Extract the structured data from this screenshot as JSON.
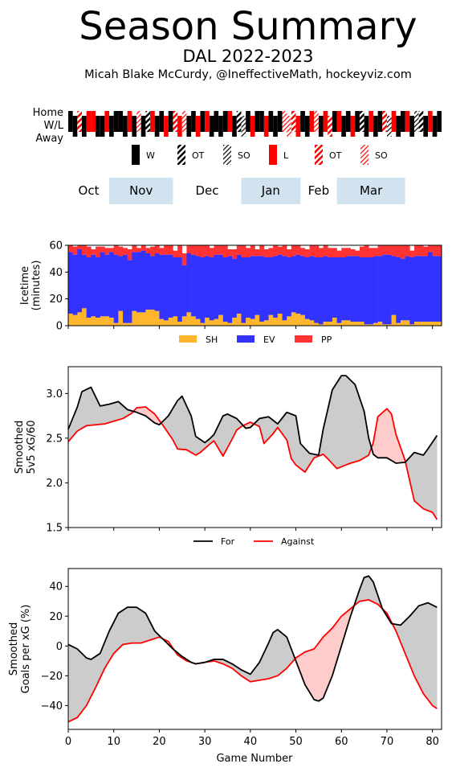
{
  "header": {
    "title": "Season Summary",
    "team_season": "DAL 2022-2023",
    "credit": "Micah Blake McCurdy, @IneffectiveMath, hockeyviz.com"
  },
  "colors": {
    "win": "#000000",
    "loss": "#ff0000",
    "sh": "#ffb52e",
    "ev": "#3333ff",
    "pp": "#ff3333",
    "for_line": "#000000",
    "against_line": "#ff0000",
    "gap_for": "#cccccc",
    "gap_against": "#ffcccc",
    "month_band": "#d1e3ef"
  },
  "results_strip": {
    "row_labels": [
      "Home",
      "W/L",
      "Away"
    ],
    "legend": [
      {
        "label": "W",
        "color": "#000000",
        "style": "solid"
      },
      {
        "label": "OT",
        "color": "#000000",
        "style": "hatch"
      },
      {
        "label": "SO",
        "color": "#000000",
        "style": "hatch-light"
      },
      {
        "label": "L",
        "color": "#ff0000",
        "style": "solid"
      },
      {
        "label": "OT",
        "color": "#ff0000",
        "style": "hatch"
      },
      {
        "label": "SO",
        "color": "#ff0000",
        "style": "hatch-light"
      }
    ],
    "games": [
      {
        "home": true,
        "result": "W"
      },
      {
        "home": false,
        "result": "W"
      },
      {
        "home": true,
        "result": "OTL"
      },
      {
        "home": false,
        "result": "W"
      },
      {
        "home": true,
        "result": "L"
      },
      {
        "home": true,
        "result": "L"
      },
      {
        "home": false,
        "result": "W"
      },
      {
        "home": false,
        "result": "W"
      },
      {
        "home": true,
        "result": "L"
      },
      {
        "home": false,
        "result": "W"
      },
      {
        "home": true,
        "result": "W"
      },
      {
        "home": true,
        "result": "W"
      },
      {
        "home": false,
        "result": "W"
      },
      {
        "home": true,
        "result": "L"
      },
      {
        "home": false,
        "result": "W"
      },
      {
        "home": true,
        "result": "SOL"
      },
      {
        "home": false,
        "result": "W"
      },
      {
        "home": true,
        "result": "OTW"
      },
      {
        "home": true,
        "result": "L"
      },
      {
        "home": false,
        "result": "W"
      },
      {
        "home": true,
        "result": "W"
      },
      {
        "home": false,
        "result": "L"
      },
      {
        "home": true,
        "result": "W"
      },
      {
        "home": true,
        "result": "OTL"
      },
      {
        "home": false,
        "result": "L"
      },
      {
        "home": true,
        "result": "SOL"
      },
      {
        "home": false,
        "result": "W"
      },
      {
        "home": true,
        "result": "W"
      },
      {
        "home": false,
        "result": "L"
      },
      {
        "home": true,
        "result": "W"
      },
      {
        "home": true,
        "result": "L"
      },
      {
        "home": false,
        "result": "W"
      },
      {
        "home": true,
        "result": "W"
      },
      {
        "home": false,
        "result": "W"
      },
      {
        "home": true,
        "result": "W"
      },
      {
        "home": true,
        "result": "L"
      },
      {
        "home": false,
        "result": "W"
      },
      {
        "home": true,
        "result": "OTW"
      },
      {
        "home": false,
        "result": "SOW"
      },
      {
        "home": true,
        "result": "W"
      },
      {
        "home": false,
        "result": "L"
      },
      {
        "home": true,
        "result": "W"
      },
      {
        "home": true,
        "result": "W"
      },
      {
        "home": false,
        "result": "L"
      },
      {
        "home": true,
        "result": "W"
      },
      {
        "home": false,
        "result": "W"
      },
      {
        "home": true,
        "result": "W"
      },
      {
        "home": true,
        "result": "SOL"
      },
      {
        "home": false,
        "result": "SOL"
      },
      {
        "home": true,
        "result": "OTL"
      },
      {
        "home": false,
        "result": "L"
      },
      {
        "home": true,
        "result": "W"
      },
      {
        "home": false,
        "result": "W"
      },
      {
        "home": true,
        "result": "L"
      },
      {
        "home": true,
        "result": "SOL"
      },
      {
        "home": false,
        "result": "W"
      },
      {
        "home": true,
        "result": "L"
      },
      {
        "home": false,
        "result": "OTL"
      },
      {
        "home": true,
        "result": "W"
      },
      {
        "home": true,
        "result": "L"
      },
      {
        "home": false,
        "result": "W"
      },
      {
        "home": true,
        "result": "W"
      },
      {
        "home": false,
        "result": "L"
      },
      {
        "home": true,
        "result": "W"
      },
      {
        "home": true,
        "result": "OTW"
      },
      {
        "home": false,
        "result": "W"
      },
      {
        "home": true,
        "result": "L"
      },
      {
        "home": false,
        "result": "W"
      },
      {
        "home": true,
        "result": "W"
      },
      {
        "home": true,
        "result": "OTL"
      },
      {
        "home": false,
        "result": "SOW"
      },
      {
        "home": true,
        "result": "L"
      },
      {
        "home": false,
        "result": "W"
      },
      {
        "home": true,
        "result": "W"
      },
      {
        "home": true,
        "result": "L"
      },
      {
        "home": false,
        "result": "W"
      },
      {
        "home": true,
        "result": "SOW"
      },
      {
        "home": true,
        "result": "OTW"
      },
      {
        "home": false,
        "result": "W"
      },
      {
        "home": true,
        "result": "L"
      },
      {
        "home": false,
        "result": "W"
      },
      {
        "home": true,
        "result": "W"
      }
    ]
  },
  "months": [
    {
      "label": "Oct",
      "start": -0.5,
      "end": 8.5,
      "shaded": false
    },
    {
      "label": "Nov",
      "start": 8.5,
      "end": 22.5,
      "shaded": true
    },
    {
      "label": "Dec",
      "start": 22.5,
      "end": 37.5,
      "shaded": false
    },
    {
      "label": "Jan",
      "start": 37.5,
      "end": 50.5,
      "shaded": true
    },
    {
      "label": "Feb",
      "start": 50.5,
      "end": 58.5,
      "shaded": false
    },
    {
      "label": "Mar",
      "start": 58.5,
      "end": 73.5,
      "shaded": true
    }
  ],
  "chart_data": [
    {
      "type": "bar",
      "stacked": true,
      "ylabel": "Icetime\n(minutes)",
      "ylim": [
        0,
        60
      ],
      "yticks": [
        0,
        20,
        40,
        60
      ],
      "xlim": [
        0,
        82
      ],
      "legend_position": "below",
      "series": [
        {
          "name": "SH",
          "values": [
            9,
            8,
            10,
            13,
            6,
            7,
            6,
            7,
            7,
            6,
            2,
            11,
            2,
            2,
            11,
            10,
            10,
            12,
            12,
            11,
            5,
            4,
            6,
            7,
            3,
            7,
            10,
            7,
            5,
            2,
            6,
            4,
            5,
            8,
            3,
            2,
            6,
            9,
            2,
            6,
            5,
            8,
            3,
            4,
            8,
            6,
            9,
            4,
            7,
            10,
            9,
            8,
            5,
            4,
            2,
            1,
            3,
            3,
            6,
            2,
            4,
            4,
            3,
            3,
            3,
            1,
            1,
            2,
            3,
            1,
            1,
            8,
            2,
            4,
            4,
            1,
            3,
            3,
            3,
            3,
            3,
            3
          ]
        },
        {
          "name": "EV",
          "values": [
            46,
            45,
            47,
            40,
            45,
            46,
            45,
            48,
            46,
            49,
            51,
            41,
            51,
            47,
            44,
            45,
            46,
            42,
            40,
            43,
            48,
            49,
            47,
            44,
            48,
            38,
            44,
            46,
            47,
            49,
            46,
            47,
            48,
            45,
            48,
            50,
            44,
            44,
            49,
            45,
            47,
            44,
            49,
            47,
            43,
            46,
            44,
            48,
            44,
            42,
            44,
            44,
            46,
            48,
            49,
            50,
            49,
            48,
            45,
            49,
            47,
            48,
            49,
            49,
            48,
            50,
            50,
            50,
            49,
            52,
            52,
            44,
            49,
            46,
            48,
            50,
            49,
            49,
            49,
            52,
            49,
            49
          ]
        },
        {
          "name": "PP",
          "values": [
            5,
            6,
            3,
            7,
            8,
            4,
            8,
            4,
            5,
            3,
            7,
            7,
            5,
            8,
            5,
            3,
            4,
            4,
            7,
            6,
            5,
            7,
            7,
            5,
            9,
            9,
            6,
            7,
            8,
            9,
            8,
            7,
            7,
            7,
            9,
            5,
            7,
            7,
            9,
            7,
            8,
            5,
            8,
            6,
            7,
            8,
            6,
            8,
            6,
            8,
            7,
            6,
            6,
            8,
            9,
            7,
            8,
            7,
            7,
            5,
            7,
            6,
            5,
            4,
            8,
            9,
            7,
            6,
            8,
            7,
            7,
            8,
            9,
            10,
            8,
            5,
            8,
            8,
            7,
            5,
            8,
            8
          ]
        }
      ]
    },
    {
      "type": "line",
      "ylabel": "Smoothed\n5v5 xG/60",
      "ylim": [
        1.5,
        3.3
      ],
      "yticks": [
        1.5,
        2.0,
        2.5,
        3.0
      ],
      "xlim": [
        0,
        82
      ],
      "legend_position": "below",
      "fill_between": true,
      "series": [
        {
          "name": "For",
          "x": [
            0,
            2,
            3,
            5,
            7,
            9,
            11,
            13,
            15,
            17,
            19,
            20,
            22,
            24,
            25,
            27,
            28,
            30,
            31,
            32,
            34,
            35,
            37,
            39,
            40,
            42,
            44,
            46,
            48,
            50,
            51,
            53,
            55,
            56,
            58,
            60,
            61,
            63,
            65,
            66,
            67,
            68,
            70,
            72,
            74,
            76,
            78,
            79,
            81
          ],
          "y": [
            2.6,
            2.85,
            3.02,
            3.07,
            2.86,
            2.88,
            2.91,
            2.82,
            2.79,
            2.75,
            2.67,
            2.65,
            2.75,
            2.92,
            2.97,
            2.75,
            2.52,
            2.45,
            2.49,
            2.54,
            2.75,
            2.77,
            2.72,
            2.61,
            2.62,
            2.72,
            2.74,
            2.66,
            2.79,
            2.75,
            2.44,
            2.33,
            2.31,
            2.6,
            3.04,
            3.2,
            3.2,
            3.1,
            2.8,
            2.5,
            2.32,
            2.28,
            2.28,
            2.22,
            2.23,
            2.34,
            2.31,
            2.38,
            2.53
          ]
        },
        {
          "name": "Against",
          "x": [
            0,
            2,
            4,
            6,
            8,
            10,
            12,
            14,
            15,
            17,
            19,
            21,
            23,
            24,
            26,
            28,
            29,
            31,
            32,
            34,
            36,
            37,
            38,
            40,
            42,
            43,
            45,
            46,
            48,
            49,
            50,
            52,
            54,
            56,
            57,
            59,
            61,
            62,
            64,
            66,
            67,
            68,
            70,
            71,
            72,
            74,
            76,
            78,
            80,
            81
          ],
          "y": [
            2.46,
            2.58,
            2.64,
            2.65,
            2.66,
            2.69,
            2.72,
            2.78,
            2.84,
            2.85,
            2.77,
            2.63,
            2.48,
            2.38,
            2.37,
            2.31,
            2.34,
            2.43,
            2.47,
            2.3,
            2.49,
            2.59,
            2.63,
            2.68,
            2.63,
            2.44,
            2.55,
            2.62,
            2.48,
            2.27,
            2.2,
            2.12,
            2.28,
            2.32,
            2.27,
            2.16,
            2.2,
            2.22,
            2.25,
            2.31,
            2.45,
            2.74,
            2.83,
            2.77,
            2.54,
            2.25,
            1.8,
            1.71,
            1.67,
            1.59
          ]
        }
      ]
    },
    {
      "type": "line",
      "ylabel": "Smoothed\nGoals per xG (%)",
      "xlabel": "Game Number",
      "ylim": [
        -56,
        52
      ],
      "yticks": [
        -40,
        -20,
        0,
        20,
        40
      ],
      "xlim": [
        0,
        82
      ],
      "xticks": [
        0,
        10,
        20,
        30,
        40,
        50,
        60,
        70,
        80
      ],
      "fill_between": true,
      "series": [
        {
          "name": "For",
          "x": [
            0,
            2,
            4,
            5,
            7,
            9,
            11,
            13,
            15,
            17,
            19,
            21,
            23,
            25,
            27,
            28,
            30,
            32,
            34,
            36,
            38,
            40,
            42,
            44,
            45,
            46,
            48,
            50,
            52,
            54,
            55,
            56,
            58,
            60,
            62,
            64,
            65,
            66,
            67,
            69,
            71,
            73,
            75,
            77,
            79,
            81
          ],
          "y": [
            1,
            -2,
            -8,
            -9,
            -5,
            10,
            22,
            26,
            26,
            22,
            10,
            4,
            -2,
            -7,
            -11,
            -12,
            -11,
            -9,
            -9,
            -12,
            -16,
            -19,
            -11,
            2,
            9,
            11,
            6,
            -10,
            -26,
            -36,
            -37,
            -35,
            -20,
            0,
            20,
            38,
            46,
            47,
            43,
            25,
            15,
            14,
            20,
            27,
            29,
            26
          ]
        },
        {
          "name": "Against",
          "x": [
            0,
            2,
            4,
            6,
            8,
            10,
            12,
            14,
            16,
            18,
            20,
            22,
            24,
            26,
            28,
            30,
            32,
            34,
            36,
            38,
            40,
            42,
            44,
            46,
            48,
            50,
            52,
            54,
            56,
            58,
            60,
            62,
            64,
            66,
            68,
            70,
            72,
            74,
            76,
            78,
            80,
            81
          ],
          "y": [
            -51,
            -48,
            -40,
            -28,
            -15,
            -5,
            1,
            2,
            2,
            4,
            6,
            3,
            -6,
            -10,
            -12,
            -11,
            -10,
            -12,
            -15,
            -20,
            -24,
            -23,
            -22,
            -20,
            -15,
            -8,
            -4,
            -2,
            6,
            12,
            20,
            25,
            30,
            31,
            28,
            22,
            10,
            -5,
            -20,
            -32,
            -40,
            -42
          ]
        }
      ]
    }
  ]
}
